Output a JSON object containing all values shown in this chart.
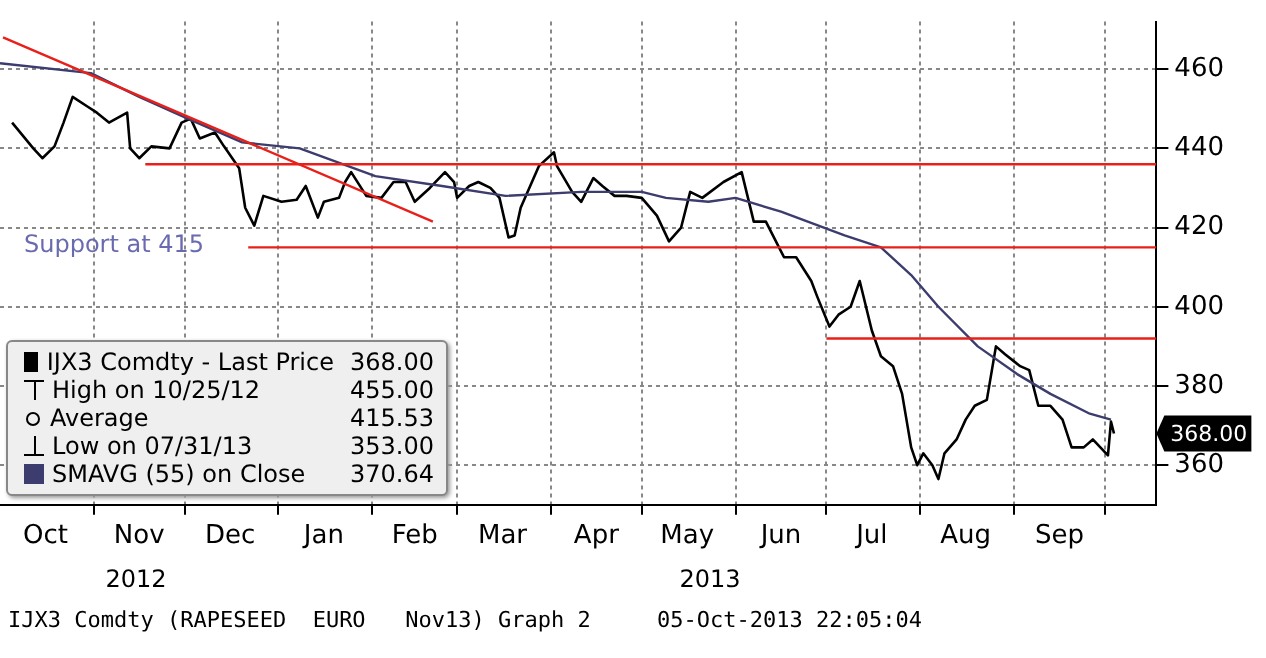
{
  "chart_data": {
    "type": "line",
    "marker": "none",
    "line_style": "solid",
    "grid": true,
    "legend": "bottom left",
    "xlim": [
      "2012-10-01",
      "2013-10-18"
    ],
    "xticks": [
      {
        "value": "2012-10-16",
        "label": "Oct"
      },
      {
        "value": "2012-11-01",
        "label": null
      },
      {
        "value": "2012-11-16",
        "label": "Nov"
      },
      {
        "value": "2012-12-01",
        "label": null
      },
      {
        "value": "2012-12-16",
        "label": "Dec"
      },
      {
        "value": "2013-01-01",
        "label": null
      },
      {
        "value": "2013-01-16",
        "label": "Jan"
      },
      {
        "value": "2013-02-01",
        "label": null
      },
      {
        "value": "2013-02-15",
        "label": "Feb"
      },
      {
        "value": "2013-03-01",
        "label": null
      },
      {
        "value": "2013-03-16",
        "label": "Mar"
      },
      {
        "value": "2013-04-01",
        "label": null
      },
      {
        "value": "2013-04-16",
        "label": "Apr"
      },
      {
        "value": "2013-05-01",
        "label": null
      },
      {
        "value": "2013-05-16",
        "label": "May"
      },
      {
        "value": "2013-06-01",
        "label": null
      },
      {
        "value": "2013-06-16",
        "label": "Jun"
      },
      {
        "value": "2013-07-01",
        "label": null
      },
      {
        "value": "2013-07-16",
        "label": "Jul"
      },
      {
        "value": "2013-08-01",
        "label": null
      },
      {
        "value": "2013-08-16",
        "label": "Aug"
      },
      {
        "value": "2013-09-01",
        "label": null
      },
      {
        "value": "2013-09-16",
        "label": "Sep"
      },
      {
        "value": "2013-10-01",
        "label": null
      }
    ],
    "ylim": [
      350,
      472
    ],
    "yticks": [
      360,
      380,
      400,
      420,
      440,
      460
    ],
    "series": [
      {
        "name": "IJX3 Comdty - Last Price",
        "color": "#000000",
        "x": [
          "2012-10-05",
          "2012-10-12",
          "2012-10-15",
          "2012-10-19",
          "2012-10-22",
          "2012-10-25",
          "2012-10-30",
          "2012-11-02",
          "2012-11-06",
          "2012-11-12",
          "2012-11-13",
          "2012-11-16",
          "2012-11-20",
          "2012-11-26",
          "2012-11-30",
          "2012-12-03",
          "2012-12-06",
          "2012-12-11",
          "2012-12-14",
          "2012-12-19",
          "2012-12-21",
          "2012-12-24",
          "2012-12-27",
          "2013-01-02",
          "2013-01-07",
          "2013-01-10",
          "2013-01-14",
          "2013-01-16",
          "2013-01-21",
          "2013-01-23",
          "2013-01-25",
          "2013-01-30",
          "2013-02-04",
          "2013-02-08",
          "2013-02-12",
          "2013-02-15",
          "2013-02-20",
          "2013-02-25",
          "2013-02-28",
          "2013-03-01",
          "2013-03-05",
          "2013-03-08",
          "2013-03-12",
          "2013-03-15",
          "2013-03-18",
          "2013-03-20",
          "2013-03-22",
          "2013-03-28",
          "2013-04-02",
          "2013-04-03",
          "2013-04-08",
          "2013-04-11",
          "2013-04-15",
          "2013-04-18",
          "2013-04-22",
          "2013-04-26",
          "2013-05-01",
          "2013-05-06",
          "2013-05-10",
          "2013-05-14",
          "2013-05-17",
          "2013-05-21",
          "2013-05-28",
          "2013-06-03",
          "2013-06-07",
          "2013-06-11",
          "2013-06-17",
          "2013-06-21",
          "2013-06-26",
          "2013-06-28",
          "2013-07-02",
          "2013-07-05",
          "2013-07-09",
          "2013-07-12",
          "2013-07-16",
          "2013-07-19",
          "2013-07-23",
          "2013-07-26",
          "2013-07-29",
          "2013-07-31",
          "2013-08-02",
          "2013-08-05",
          "2013-08-07",
          "2013-08-09",
          "2013-08-13",
          "2013-08-16",
          "2013-08-19",
          "2013-08-23",
          "2013-08-26",
          "2013-08-29",
          "2013-09-03",
          "2013-09-06",
          "2013-09-09",
          "2013-09-13",
          "2013-09-17",
          "2013-09-20",
          "2013-09-24",
          "2013-09-27",
          "2013-10-02",
          "2013-10-03",
          "2013-10-04"
        ],
        "values": [
          446.5,
          440,
          437.5,
          440.5,
          446.5,
          453,
          450.5,
          449,
          446.5,
          449,
          440,
          437.5,
          440.5,
          440,
          446.5,
          447.5,
          442.5,
          444,
          440.5,
          435,
          425,
          420.5,
          428,
          426.5,
          427,
          430.5,
          422.5,
          426.5,
          427.5,
          431.5,
          434,
          428,
          427.5,
          431.5,
          431.5,
          426.5,
          430,
          434,
          431.5,
          427.5,
          430.5,
          431.5,
          430,
          427.5,
          417.5,
          418,
          425,
          435.5,
          439,
          435.5,
          429,
          426.5,
          432.5,
          430.5,
          428,
          428,
          427.5,
          423,
          416.5,
          420,
          429,
          427.5,
          431.5,
          434,
          421.5,
          421.5,
          412.5,
          412.5,
          406.5,
          402.5,
          395,
          398,
          400,
          406.5,
          394,
          387.5,
          385,
          378,
          364.5,
          360,
          363,
          360,
          356.5,
          363,
          366.5,
          371.5,
          375,
          376.5,
          390,
          388,
          385,
          384,
          375,
          375,
          371.5,
          364.5,
          364.5,
          366.5,
          362.5,
          371,
          368
        ]
      },
      {
        "name": "SMAVG (55) on Close",
        "color": "#3c3c6e",
        "x": [
          "2012-10-01",
          "2012-10-31",
          "2012-11-16",
          "2012-12-02",
          "2012-12-20",
          "2013-01-08",
          "2013-02-02",
          "2013-02-24",
          "2013-03-17",
          "2013-04-11",
          "2013-05-01",
          "2013-05-09",
          "2013-05-23",
          "2013-06-01",
          "2013-06-16",
          "2013-07-07",
          "2013-07-19",
          "2013-07-29",
          "2013-08-07",
          "2013-08-20",
          "2013-09-02",
          "2013-09-13",
          "2013-09-26",
          "2013-10-03"
        ],
        "values": [
          461.5,
          459,
          453,
          447.5,
          441.5,
          440,
          433,
          430.5,
          428,
          429,
          429,
          427.5,
          426.5,
          427.5,
          424,
          418,
          415,
          408,
          400,
          390,
          383,
          378,
          373,
          371.5
        ]
      },
      {
        "color": "#e8201a",
        "x": [
          "2012-10-02",
          "2013-02-21"
        ],
        "values": [
          468,
          421.5
        ]
      },
      {
        "color": "#e8201a",
        "x": [
          "2012-11-18",
          "2013-10-18"
        ],
        "values": [
          436,
          436
        ]
      },
      {
        "color": "#e8201a",
        "x": [
          "2012-12-22",
          "2013-10-18"
        ],
        "values": [
          415,
          415
        ]
      },
      {
        "color": "#e8201a",
        "x": [
          "2013-07-01",
          "2013-10-18"
        ],
        "values": [
          392,
          392
        ]
      }
    ],
    "annotations": [
      "Support at 415",
      {
        "text": "368.00",
        "x": "2013-10-04",
        "y": 368
      },
      "368.00",
      "High on 10/25/12 455.00",
      "Average 415.53",
      "Low on 07/31/13 353.00",
      "370.64",
      "2012",
      "2013",
      "IJX3 Comdty (RAPESEED  EURO   Nov13) Graph 2     05-Oct-2013 22:05:04"
    ]
  }
}
